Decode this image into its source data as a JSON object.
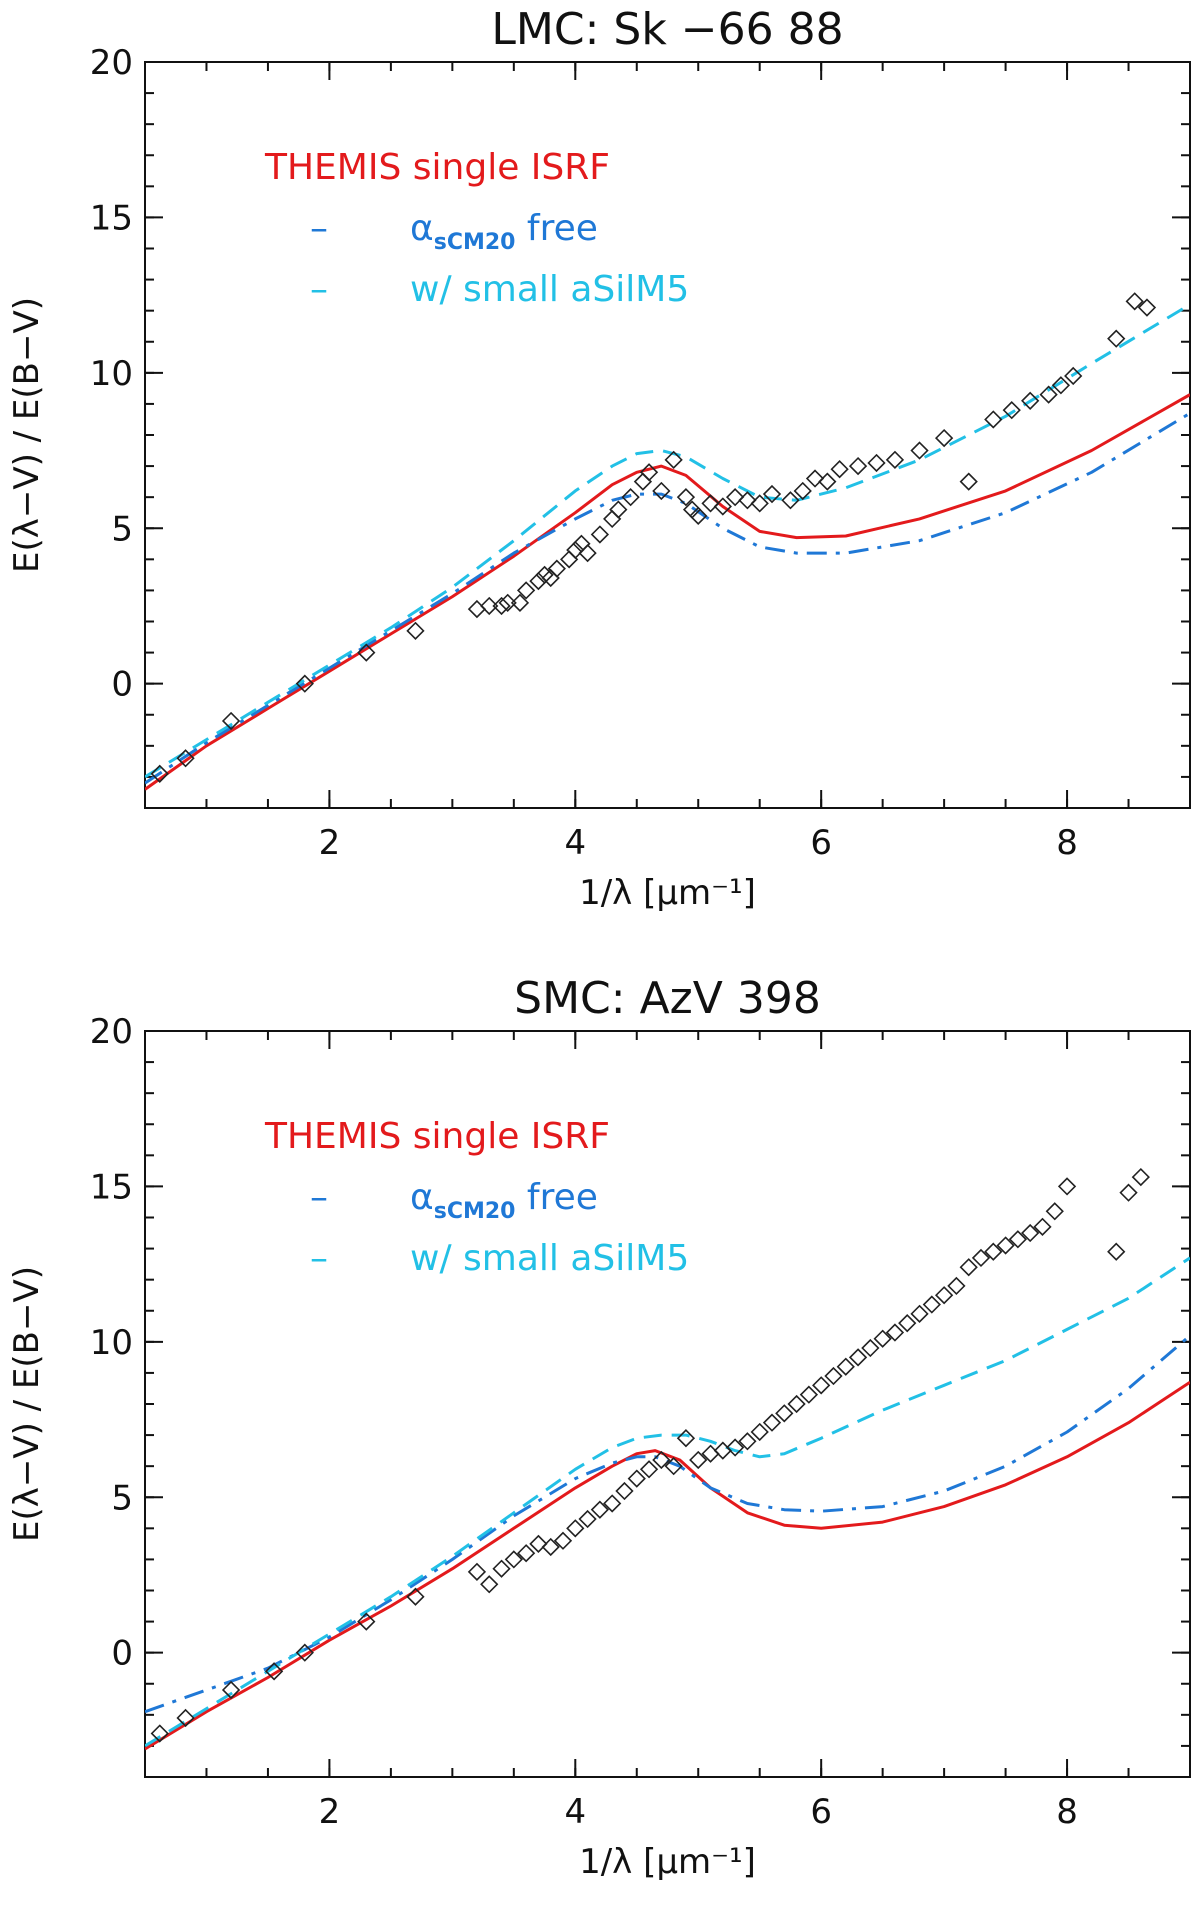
{
  "chart_data": [
    {
      "type": "line",
      "title": "LMC:  Sk −66 88",
      "xlabel": "1/λ [μm⁻¹]",
      "ylabel": "E(λ−V) / E(B−V)",
      "xlim": [
        0.5,
        9.0
      ],
      "ylim": [
        -4,
        20
      ],
      "x_ticks": [
        2,
        4,
        6,
        8
      ],
      "y_ticks": [
        0,
        5,
        10,
        15,
        20
      ],
      "legend": {
        "title": "THEMIS single ISRF",
        "entries": [
          {
            "marker": "–",
            "label_main": "α",
            "label_sub": "sCM20",
            "label_rest": " free",
            "color": "#1f78d6"
          },
          {
            "marker": "–",
            "label_main": "w/ small aSilM5",
            "label_sub": "",
            "label_rest": "",
            "color": "#22c0e6"
          }
        ],
        "placement": "top-left"
      },
      "series": [
        {
          "name": "THEMIS single ISRF",
          "color": "#e31a1c",
          "style": "solid",
          "x": [
            0.5,
            1.0,
            1.5,
            2.0,
            2.5,
            3.0,
            3.5,
            4.0,
            4.3,
            4.5,
            4.7,
            4.9,
            5.2,
            5.5,
            5.8,
            6.2,
            6.8,
            7.5,
            8.2,
            9.0
          ],
          "y": [
            -3.4,
            -2.0,
            -0.8,
            0.4,
            1.6,
            2.8,
            4.1,
            5.5,
            6.4,
            6.8,
            7.0,
            6.7,
            5.7,
            4.9,
            4.7,
            4.75,
            5.3,
            6.2,
            7.5,
            9.3
          ]
        },
        {
          "name": "alpha sCM20 free",
          "color": "#1f78d6",
          "style": "dashdot",
          "x": [
            0.5,
            1.0,
            1.5,
            2.0,
            2.5,
            3.0,
            3.5,
            4.0,
            4.3,
            4.5,
            4.7,
            4.9,
            5.2,
            5.5,
            5.8,
            6.2,
            6.8,
            7.5,
            8.2,
            9.0
          ],
          "y": [
            -3.2,
            -1.9,
            -0.7,
            0.5,
            1.7,
            2.9,
            4.2,
            5.3,
            5.9,
            6.1,
            6.1,
            5.8,
            5.0,
            4.4,
            4.2,
            4.2,
            4.6,
            5.5,
            6.8,
            8.7
          ]
        },
        {
          "name": "w/ small aSilM5",
          "color": "#22c0e6",
          "style": "dashed",
          "x": [
            0.5,
            1.0,
            1.5,
            2.0,
            2.5,
            3.0,
            3.5,
            4.0,
            4.3,
            4.5,
            4.7,
            4.9,
            5.2,
            5.5,
            5.8,
            6.2,
            6.8,
            7.5,
            8.2,
            9.0
          ],
          "y": [
            -3.0,
            -1.8,
            -0.6,
            0.6,
            1.8,
            3.1,
            4.6,
            6.2,
            7.0,
            7.4,
            7.5,
            7.3,
            6.6,
            6.0,
            5.9,
            6.3,
            7.2,
            8.6,
            10.3,
            12.2
          ]
        },
        {
          "name": "observed",
          "color": "#222222",
          "style": "diamond",
          "x": [
            0.62,
            0.83,
            1.2,
            1.8,
            2.3,
            2.7,
            3.2,
            3.3,
            3.4,
            3.45,
            3.55,
            3.6,
            3.7,
            3.75,
            3.8,
            3.85,
            3.95,
            4.0,
            4.05,
            4.1,
            4.2,
            4.3,
            4.35,
            4.45,
            4.55,
            4.6,
            4.7,
            4.8,
            4.9,
            4.95,
            5.0,
            5.1,
            5.2,
            5.3,
            5.4,
            5.5,
            5.6,
            5.75,
            5.85,
            5.95,
            6.05,
            6.15,
            6.3,
            6.45,
            6.6,
            6.8,
            7.0,
            7.2,
            7.4,
            7.55,
            7.7,
            7.85,
            7.95,
            8.05,
            8.4,
            8.55,
            8.65
          ],
          "y": [
            -2.9,
            -2.4,
            -1.2,
            0.0,
            1.0,
            1.7,
            2.4,
            2.5,
            2.5,
            2.6,
            2.6,
            3.0,
            3.3,
            3.5,
            3.4,
            3.7,
            4.0,
            4.3,
            4.5,
            4.2,
            4.8,
            5.3,
            5.6,
            6.0,
            6.5,
            6.8,
            6.2,
            7.2,
            6.0,
            5.6,
            5.4,
            5.8,
            5.7,
            6.0,
            5.9,
            5.8,
            6.1,
            5.9,
            6.2,
            6.6,
            6.5,
            6.9,
            7.0,
            7.1,
            7.2,
            7.5,
            7.9,
            6.5,
            8.5,
            8.8,
            9.1,
            9.3,
            9.6,
            9.9,
            11.1,
            12.3,
            12.1
          ]
        }
      ]
    },
    {
      "type": "line",
      "title": "SMC: AzV 398",
      "xlabel": "1/λ [μm⁻¹]",
      "ylabel": "E(λ−V) / E(B−V)",
      "xlim": [
        0.5,
        9.0
      ],
      "ylim": [
        -4,
        20
      ],
      "x_ticks": [
        2,
        4,
        6,
        8
      ],
      "y_ticks": [
        0,
        5,
        10,
        15,
        20
      ],
      "legend": {
        "title": "THEMIS single ISRF",
        "entries": [
          {
            "marker": "–",
            "label_main": "α",
            "label_sub": "sCM20",
            "label_rest": " free",
            "color": "#1f78d6"
          },
          {
            "marker": "–",
            "label_main": "w/ small aSilM5",
            "label_sub": "",
            "label_rest": "",
            "color": "#22c0e6"
          }
        ],
        "placement": "top-left"
      },
      "series": [
        {
          "name": "THEMIS single ISRF",
          "color": "#e31a1c",
          "style": "solid",
          "x": [
            0.5,
            1.0,
            1.5,
            2.0,
            2.5,
            3.0,
            3.5,
            4.0,
            4.3,
            4.5,
            4.65,
            4.85,
            5.1,
            5.4,
            5.7,
            6.0,
            6.5,
            7.0,
            7.5,
            8.0,
            8.5,
            9.0
          ],
          "y": [
            -3.1,
            -1.9,
            -0.8,
            0.4,
            1.5,
            2.7,
            4.0,
            5.3,
            6.0,
            6.4,
            6.5,
            6.2,
            5.3,
            4.5,
            4.1,
            4.0,
            4.2,
            4.7,
            5.4,
            6.3,
            7.4,
            8.7
          ]
        },
        {
          "name": "alpha sCM20 free",
          "color": "#1f78d6",
          "style": "dashdot",
          "x": [
            0.5,
            1.0,
            1.5,
            2.0,
            2.5,
            3.0,
            3.5,
            4.0,
            4.3,
            4.5,
            4.65,
            4.85,
            5.1,
            5.4,
            5.7,
            6.0,
            6.5,
            7.0,
            7.5,
            8.0,
            8.5,
            9.0
          ],
          "y": [
            -1.9,
            -1.2,
            -0.5,
            0.5,
            1.7,
            3.0,
            4.4,
            5.6,
            6.1,
            6.3,
            6.3,
            6.0,
            5.3,
            4.8,
            4.6,
            4.55,
            4.7,
            5.2,
            6.0,
            7.1,
            8.5,
            10.2
          ]
        },
        {
          "name": "w/ small aSilM5",
          "color": "#22c0e6",
          "style": "dashed",
          "x": [
            0.5,
            1.0,
            1.5,
            2.0,
            2.5,
            3.0,
            3.5,
            4.0,
            4.3,
            4.5,
            4.7,
            4.9,
            5.1,
            5.3,
            5.5,
            5.7,
            6.0,
            6.5,
            7.0,
            7.5,
            8.0,
            8.5,
            9.0
          ],
          "y": [
            -3.0,
            -1.8,
            -0.6,
            0.6,
            1.8,
            3.1,
            4.5,
            5.9,
            6.6,
            6.9,
            7.0,
            7.0,
            6.8,
            6.5,
            6.3,
            6.4,
            6.9,
            7.8,
            8.6,
            9.4,
            10.4,
            11.4,
            12.7
          ]
        },
        {
          "name": "observed",
          "color": "#222222",
          "style": "diamond",
          "x": [
            0.62,
            0.83,
            1.2,
            1.55,
            1.8,
            2.3,
            2.7,
            3.2,
            3.3,
            3.4,
            3.5,
            3.6,
            3.7,
            3.8,
            3.9,
            4.0,
            4.1,
            4.2,
            4.3,
            4.4,
            4.5,
            4.6,
            4.7,
            4.8,
            4.9,
            5.0,
            5.1,
            5.2,
            5.3,
            5.4,
            5.5,
            5.6,
            5.7,
            5.8,
            5.9,
            6.0,
            6.1,
            6.2,
            6.3,
            6.4,
            6.5,
            6.6,
            6.7,
            6.8,
            6.9,
            7.0,
            7.1,
            7.2,
            7.3,
            7.4,
            7.5,
            7.6,
            7.7,
            7.8,
            7.9,
            8.0,
            8.4,
            8.5,
            8.6
          ],
          "y": [
            -2.6,
            -2.1,
            -1.2,
            -0.6,
            0.0,
            1.0,
            1.8,
            2.6,
            2.2,
            2.7,
            3.0,
            3.2,
            3.5,
            3.4,
            3.6,
            4.0,
            4.3,
            4.6,
            4.8,
            5.2,
            5.6,
            5.9,
            6.2,
            6.0,
            6.9,
            6.2,
            6.4,
            6.5,
            6.6,
            6.8,
            7.1,
            7.4,
            7.7,
            8.0,
            8.3,
            8.6,
            8.9,
            9.2,
            9.5,
            9.8,
            10.1,
            10.3,
            10.6,
            10.9,
            11.2,
            11.5,
            11.8,
            12.4,
            12.7,
            12.9,
            13.1,
            13.3,
            13.5,
            13.7,
            14.2,
            15.0,
            12.9,
            14.8,
            15.3
          ]
        }
      ]
    }
  ]
}
